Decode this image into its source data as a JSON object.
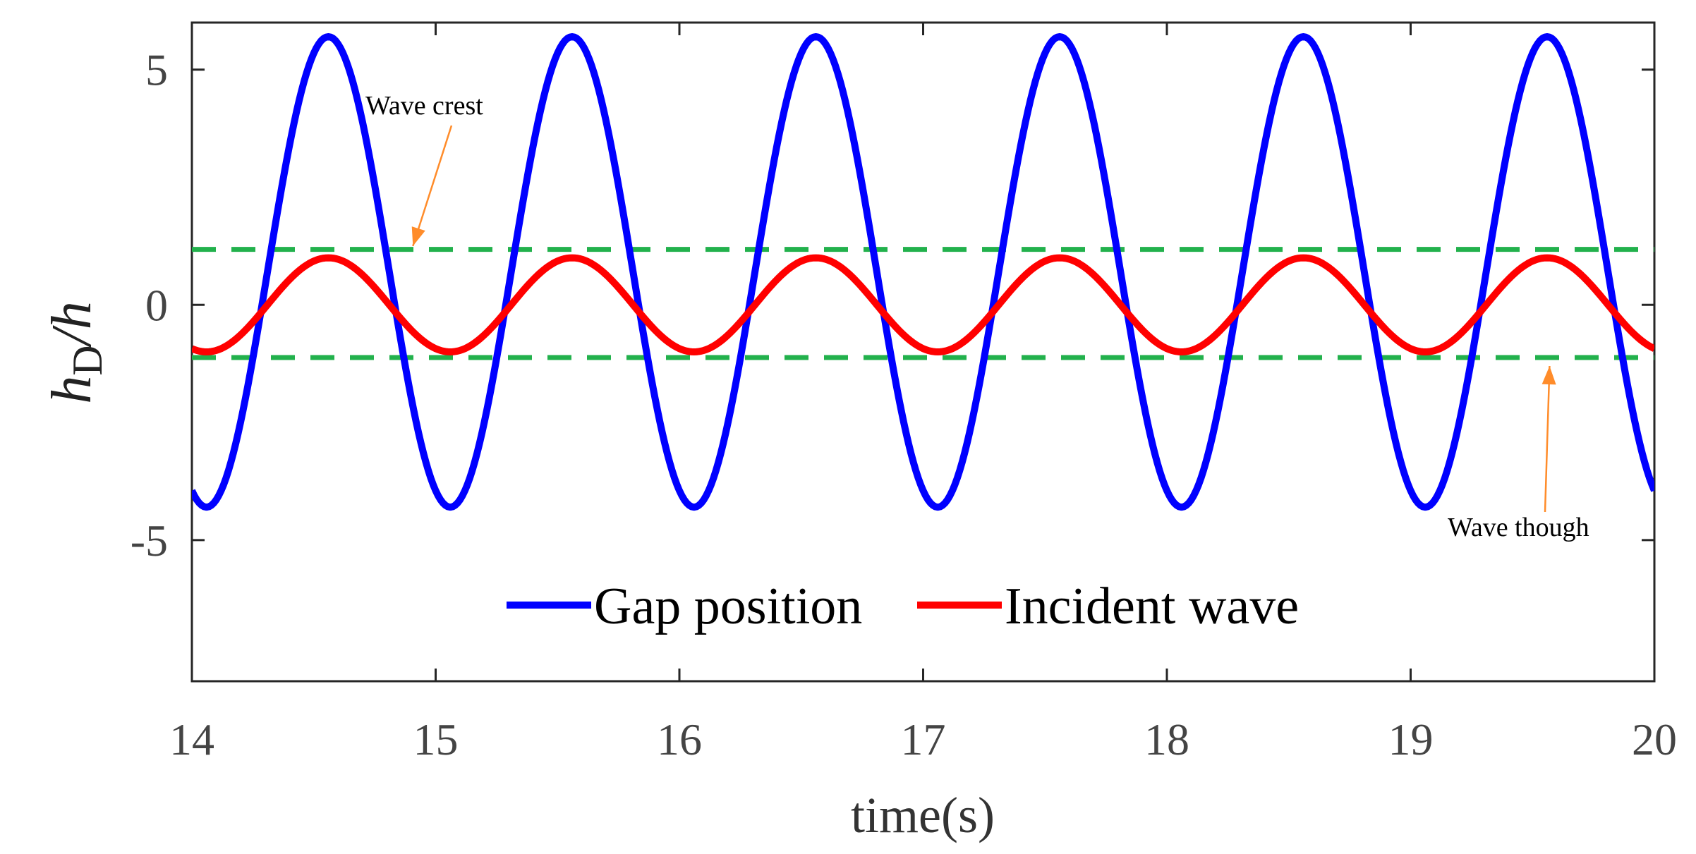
{
  "chart_data": {
    "type": "line",
    "title": "",
    "xlabel": "time(s)",
    "ylabel": {
      "main": "h",
      "sub": "D",
      "rest": "/h"
    },
    "xlim": [
      14,
      20
    ],
    "ylim": [
      -8,
      6
    ],
    "xticks": [
      14,
      15,
      16,
      17,
      18,
      19,
      20
    ],
    "yticks": [
      5,
      0,
      -5
    ],
    "ytick_labels": [
      "5",
      "0",
      "-5"
    ],
    "grid": false,
    "legend": {
      "placement": "bottom-center",
      "orientation": "horizontal"
    },
    "series": [
      {
        "name": "Gap position",
        "color": "#0000ff",
        "style": "solid",
        "model": "sinusoid",
        "offset": 0.7,
        "amplitude": 5.0,
        "period": 1.0,
        "peak_time": 14.56,
        "x_range": [
          14,
          20
        ]
      },
      {
        "name": "Incident wave",
        "color": "#ff0000",
        "style": "solid",
        "model": "sinusoid",
        "offset": 0.0,
        "amplitude": 1.0,
        "period": 1.0,
        "peak_time": 14.56,
        "x_range": [
          14,
          20
        ]
      }
    ],
    "reference_lines": [
      {
        "name": "crest-line",
        "y": 1.18,
        "color": "#22b14c",
        "style": "dashed"
      },
      {
        "name": "trough-line",
        "y": -1.12,
        "color": "#22b14c",
        "style": "dashed"
      }
    ],
    "annotations": [
      {
        "name": "wave-crest-annotation",
        "text": "Wave crest",
        "target_x": 14.93,
        "target_y": 1.25,
        "color": "#ff8c2a"
      },
      {
        "name": "wave-trough-annotation",
        "text": "Wave though",
        "target_x": 19.57,
        "target_y": -1.3,
        "color": "#ff8c2a"
      }
    ]
  }
}
